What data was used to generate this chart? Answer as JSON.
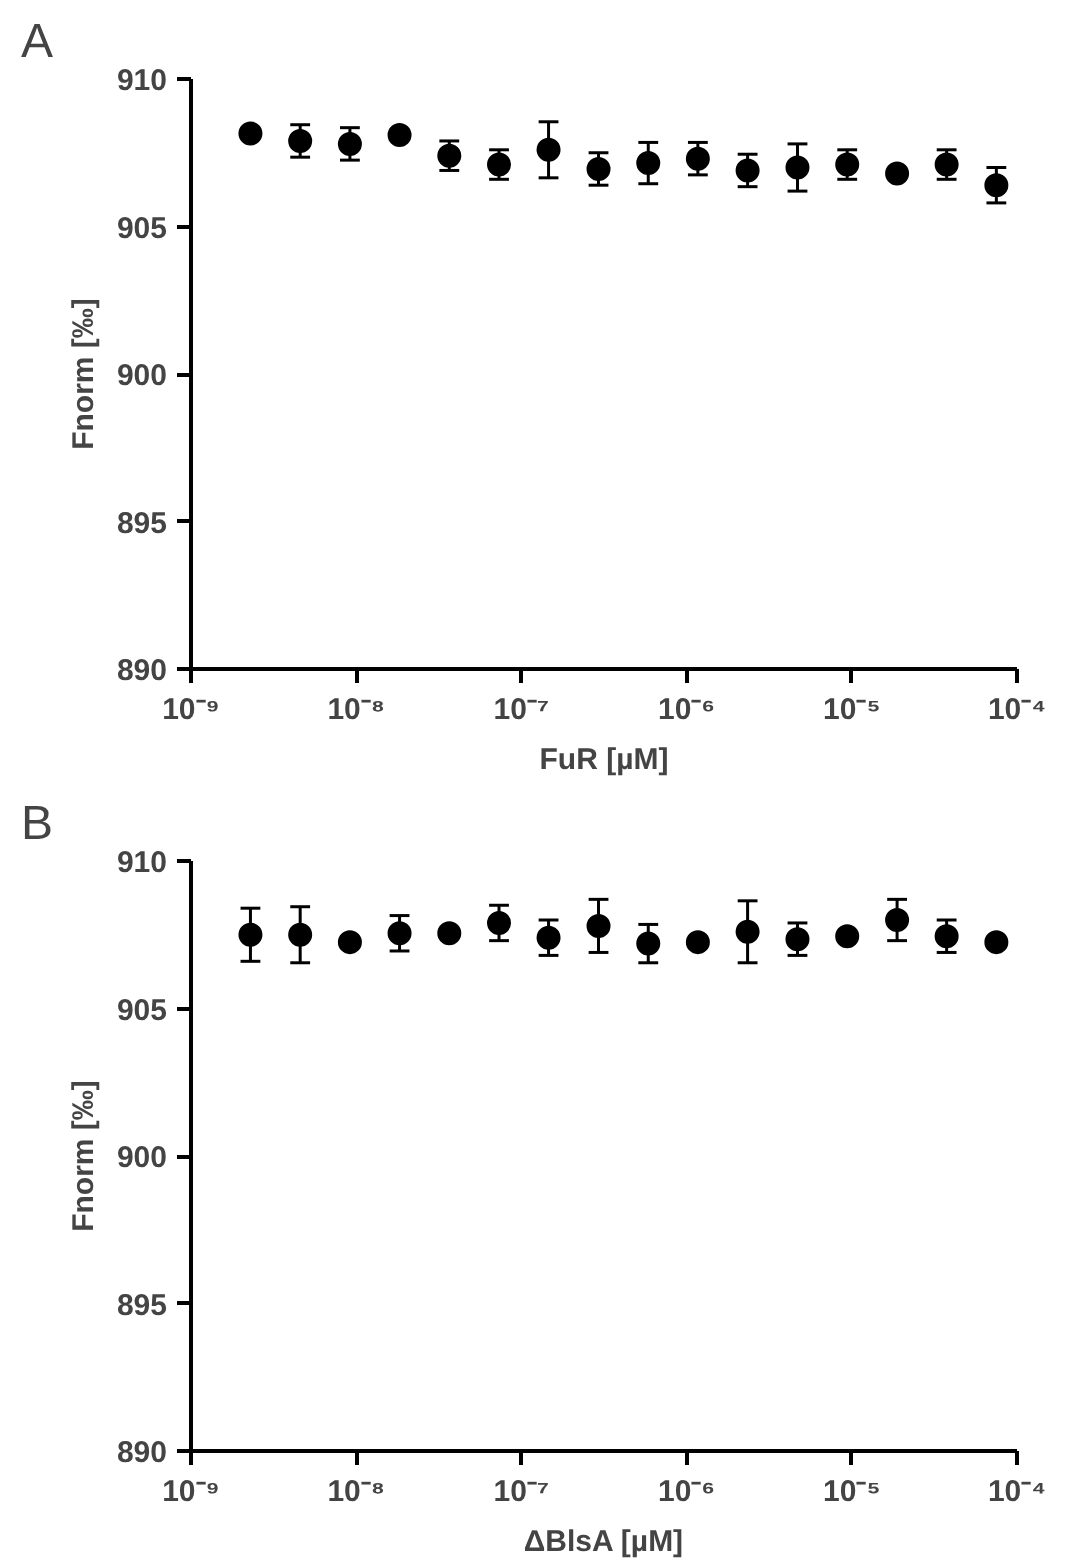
{
  "chart_data": [
    {
      "type": "scatter",
      "annotations": [
        "A"
      ],
      "xlabel": "FuR [µM]",
      "ylabel": "Fnorm [‰]",
      "log": "x",
      "marker": "circle",
      "grid": false,
      "xlim": [
        1e-09,
        0.0001
      ],
      "xticks": [
        {
          "value": 1e-09,
          "label": "10⁻⁹"
        },
        {
          "value": 1e-08,
          "label": "10⁻⁸"
        },
        {
          "value": 1e-07,
          "label": "10⁻⁷"
        },
        {
          "value": 1e-06,
          "label": "10⁻⁶"
        },
        {
          "value": 1e-05,
          "label": "10⁻⁵"
        },
        {
          "value": 0.0001,
          "label": "10⁻⁴"
        }
      ],
      "ylim": [
        890,
        910
      ],
      "yticks": [
        890,
        895,
        900,
        905,
        910
      ],
      "x": [
        2.29e-09,
        4.58e-09,
        9.16e-09,
        1.83e-08,
        3.66e-08,
        7.32e-08,
        1.46e-07,
        2.93e-07,
        5.86e-07,
        1.17e-06,
        2.34e-06,
        4.69e-06,
        9.38e-06,
        1.88e-05,
        3.75e-05,
        7.5e-05
      ],
      "series": [
        {
          "color": "#000000",
          "values": [
            908.15,
            907.9,
            907.8,
            908.1,
            907.4,
            907.1,
            907.6,
            906.95,
            907.15,
            907.3,
            906.9,
            907.0,
            907.1,
            906.8,
            907.1,
            906.4
          ],
          "errors": [
            null,
            0.55,
            0.55,
            null,
            0.5,
            0.5,
            0.95,
            0.55,
            0.7,
            0.55,
            0.55,
            0.8,
            0.5,
            null,
            0.5,
            0.6
          ]
        }
      ]
    },
    {
      "type": "scatter",
      "annotations": [
        "B"
      ],
      "xlabel": "ΔBlsA [µM]",
      "ylabel": "Fnorm [‰]",
      "log": "x",
      "marker": "circle",
      "grid": false,
      "xlim": [
        1e-09,
        0.0001
      ],
      "xticks": [
        {
          "value": 1e-09,
          "label": "10⁻⁹"
        },
        {
          "value": 1e-08,
          "label": "10⁻⁸"
        },
        {
          "value": 1e-07,
          "label": "10⁻⁷"
        },
        {
          "value": 1e-06,
          "label": "10⁻⁶"
        },
        {
          "value": 1e-05,
          "label": "10⁻⁵"
        },
        {
          "value": 0.0001,
          "label": "10⁻⁴"
        }
      ],
      "ylim": [
        890,
        910
      ],
      "yticks": [
        890,
        895,
        900,
        905,
        910
      ],
      "x": [
        2.29e-09,
        4.58e-09,
        9.16e-09,
        1.83e-08,
        3.66e-08,
        7.32e-08,
        1.46e-07,
        2.93e-07,
        5.86e-07,
        1.17e-06,
        2.34e-06,
        4.69e-06,
        9.38e-06,
        1.88e-05,
        3.75e-05,
        7.5e-05
      ],
      "series": [
        {
          "color": "#000000",
          "values": [
            907.5,
            907.5,
            907.25,
            907.55,
            907.55,
            907.9,
            907.4,
            907.8,
            907.2,
            907.25,
            907.6,
            907.35,
            907.45,
            908.0,
            907.45,
            907.25
          ],
          "errors": [
            0.9,
            0.95,
            null,
            0.6,
            null,
            0.6,
            0.6,
            0.9,
            0.65,
            null,
            1.05,
            0.55,
            null,
            0.7,
            0.55,
            null
          ]
        }
      ]
    }
  ]
}
